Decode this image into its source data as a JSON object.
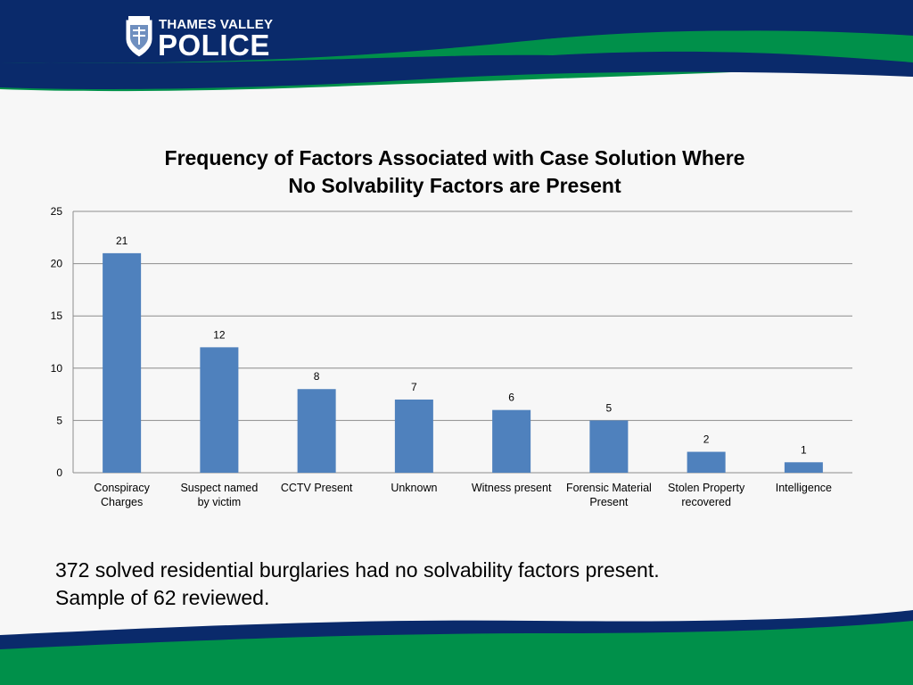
{
  "brand": {
    "name_top": "THAMES VALLEY",
    "name_main": "POLICE",
    "colors": {
      "navy": "#0a2a6b",
      "green": "#00904a",
      "white": "#ffffff"
    }
  },
  "chart_data": {
    "type": "bar",
    "title_line1": "Frequency of Factors Associated with Case Solution Where",
    "title_line2": "No Solvability Factors are Present",
    "categories": [
      [
        "Conspiracy",
        "Charges"
      ],
      [
        "Suspect named",
        "by victim"
      ],
      [
        "CCTV Present",
        ""
      ],
      [
        "Unknown",
        ""
      ],
      [
        "Witness present",
        ""
      ],
      [
        "Forensic Material",
        "Present"
      ],
      [
        "Stolen Property",
        "recovered"
      ],
      [
        "Intelligence",
        ""
      ]
    ],
    "values": [
      21,
      12,
      8,
      7,
      6,
      5,
      2,
      1
    ],
    "data_labels": [
      "21",
      "12",
      "8",
      "7",
      "6",
      "5",
      "2",
      "1"
    ],
    "y_ticks": [
      "0",
      "5",
      "10",
      "15",
      "20",
      "25"
    ],
    "ylim": [
      0,
      25
    ],
    "grid": true,
    "bar_color": "#4f81bd"
  },
  "caption": {
    "line1": "372 solved residential burglaries had no solvability factors present.",
    "line2": "Sample of 62 reviewed."
  }
}
